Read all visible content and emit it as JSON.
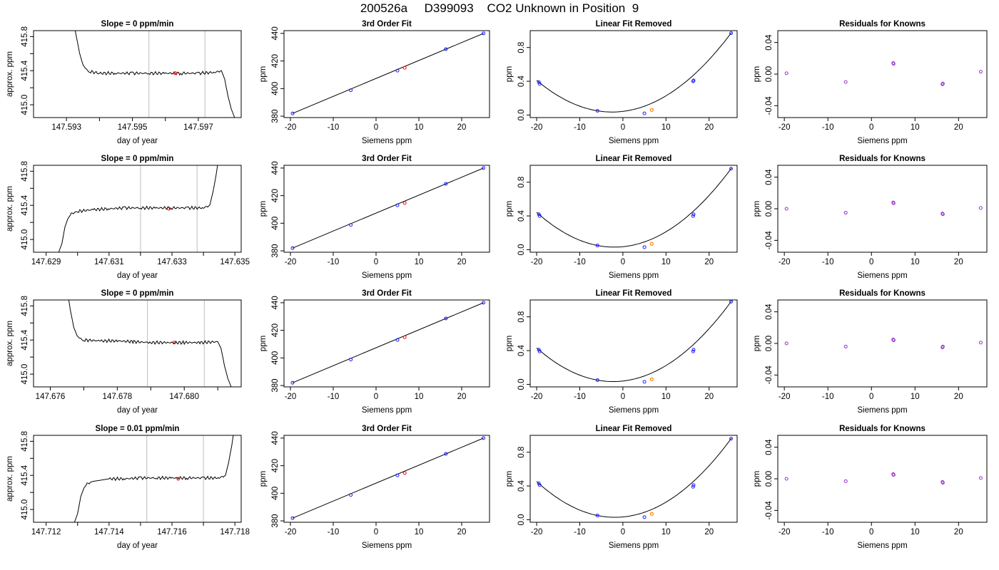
{
  "figure_title": "200526a     D399093    CO2 Unknown in Position  9",
  "colors": {
    "blue": "#1a1aff",
    "red": "#ff0000",
    "orange": "#ff8000",
    "purple": "#9932cc",
    "grid_line": "#c8c8c8",
    "curve": "#000000"
  },
  "chart_data": [
    {
      "type": "line",
      "panel": "time-row-1",
      "title": "Slope =  0  ppm/min",
      "xlabel": "day of year",
      "ylabel": "approx. ppm",
      "xlim": [
        147.592,
        147.5983
      ],
      "ylim": [
        414.85,
        415.87
      ],
      "xticks": [
        147.593,
        147.595,
        147.597
      ],
      "xtick_labels": [
        "147.593",
        "147.595",
        "147.597"
      ],
      "xticks_minor": [
        147.594,
        147.596
      ],
      "yticks": [
        415.0,
        415.2,
        415.4,
        415.6,
        415.8
      ],
      "ytick_labels": [
        "415.0",
        "",
        "415.4",
        "",
        "415.8"
      ],
      "vlines": [
        147.5955,
        147.5972
      ],
      "marker": {
        "x": 147.5963,
        "y": 415.37
      },
      "series": [
        {
          "x": [
            147.5932,
            147.5933,
            147.5934,
            147.5935,
            147.5936,
            147.5937,
            147.594,
            147.5945,
            147.595,
            147.5955,
            147.596,
            147.5965,
            147.597,
            147.5975,
            147.5977,
            147.5978,
            147.5979,
            147.598,
            147.5981
          ],
          "y": [
            416.0,
            415.8,
            415.6,
            415.47,
            415.41,
            415.39,
            415.37,
            415.37,
            415.37,
            415.37,
            415.37,
            415.37,
            415.37,
            415.38,
            415.4,
            415.3,
            415.1,
            414.95,
            414.85
          ]
        }
      ]
    },
    {
      "type": "scatter",
      "panel": "fit-row-1",
      "title": "3rd Order Fit",
      "xlabel": "Siemens ppm",
      "ylabel": "ppm",
      "xlim": [
        -21.5,
        26.5
      ],
      "ylim": [
        379,
        442
      ],
      "xticks": [
        -20,
        -10,
        0,
        10,
        20
      ],
      "yticks": [
        380,
        400,
        420,
        440
      ],
      "knowns": [
        {
          "x": -19.5,
          "y": 382
        },
        {
          "x": -5.9,
          "y": 398.8
        },
        {
          "x": 5.0,
          "y": 413.0
        },
        {
          "x": 16.3,
          "y": 428.6
        },
        {
          "x": 25.1,
          "y": 440.0
        }
      ],
      "unknown": {
        "x": 6.7,
        "y": 415.0
      }
    },
    {
      "type": "scatter",
      "panel": "lin-row-1",
      "title": "Linear Fit Removed",
      "xlabel": "Siemens ppm",
      "ylabel": "ppm",
      "xlim": [
        -21.5,
        26.5
      ],
      "ylim": [
        -0.03,
        1.0
      ],
      "xticks": [
        -20,
        -10,
        0,
        10,
        20
      ],
      "yticks": [
        0.0,
        0.4,
        0.8
      ],
      "knowns": [
        {
          "x": -19.5,
          "y": 0.39
        },
        {
          "x": -19.3,
          "y": 0.37
        },
        {
          "x": -5.9,
          "y": 0.05
        },
        {
          "x": 5.0,
          "y": 0.02
        },
        {
          "x": 16.3,
          "y": 0.4
        },
        {
          "x": 16.4,
          "y": 0.41
        },
        {
          "x": 25.1,
          "y": 0.97
        }
      ],
      "unknown": {
        "x": 6.7,
        "y": 0.06
      }
    },
    {
      "type": "scatter",
      "panel": "res-row-1",
      "title": "Residuals for Knowns",
      "xlabel": "Siemens ppm",
      "ylabel": "ppm",
      "xlim": [
        -21.5,
        26.5
      ],
      "ylim": [
        -0.055,
        0.055
      ],
      "xticks": [
        -20,
        -10,
        0,
        10,
        20
      ],
      "yticks": [
        -0.04,
        0.0,
        0.04
      ],
      "points": [
        {
          "x": -19.5,
          "y": 0.001
        },
        {
          "x": -5.9,
          "y": -0.01
        },
        {
          "x": 5.0,
          "y": 0.014
        },
        {
          "x": 5.1,
          "y": 0.013
        },
        {
          "x": 16.3,
          "y": -0.013
        },
        {
          "x": 16.4,
          "y": -0.012
        },
        {
          "x": 25.1,
          "y": 0.003
        }
      ]
    },
    {
      "type": "line",
      "panel": "time-row-2",
      "title": "Slope =  0  ppm/min",
      "xlabel": "day of year",
      "ylabel": "approx. ppm",
      "xlim": [
        147.6286,
        147.6352
      ],
      "ylim": [
        414.85,
        415.87
      ],
      "xticks": [
        147.629,
        147.631,
        147.633,
        147.635
      ],
      "xtick_labels": [
        "147.629",
        "147.631",
        "147.633",
        "147.635"
      ],
      "xticks_minor": [
        147.63,
        147.632,
        147.634
      ],
      "yticks": [
        415.0,
        415.2,
        415.4,
        415.6,
        415.8
      ],
      "ytick_labels": [
        "415.0",
        "",
        "415.4",
        "",
        "415.8"
      ],
      "vlines": [
        147.632,
        147.6338
      ],
      "marker": {
        "x": 147.6329,
        "y": 415.36
      },
      "series": [
        {
          "x": [
            147.6294,
            147.6295,
            147.6296,
            147.6297,
            147.6298,
            147.63,
            147.6305,
            147.631,
            147.6315,
            147.632,
            147.6325,
            147.633,
            147.6335,
            147.634,
            147.6342,
            147.6343,
            147.6344,
            147.6345
          ],
          "y": [
            414.85,
            414.95,
            415.15,
            415.25,
            415.3,
            415.33,
            415.35,
            415.36,
            415.37,
            415.37,
            415.37,
            415.37,
            415.37,
            415.37,
            415.4,
            415.55,
            415.75,
            416.0
          ]
        }
      ]
    },
    {
      "type": "scatter",
      "panel": "fit-row-2",
      "title": "3rd Order Fit",
      "xlabel": "Siemens ppm",
      "ylabel": "ppm",
      "xlim": [
        -21.5,
        26.5
      ],
      "ylim": [
        379,
        442
      ],
      "xticks": [
        -20,
        -10,
        0,
        10,
        20
      ],
      "yticks": [
        380,
        400,
        420,
        440
      ],
      "knowns": [
        {
          "x": -19.5,
          "y": 382
        },
        {
          "x": -5.9,
          "y": 398.8
        },
        {
          "x": 5.0,
          "y": 413.0
        },
        {
          "x": 16.3,
          "y": 428.6
        },
        {
          "x": 25.1,
          "y": 440.0
        }
      ],
      "unknown": {
        "x": 6.7,
        "y": 414.7
      }
    },
    {
      "type": "scatter",
      "panel": "lin-row-2",
      "title": "Linear Fit Removed",
      "xlabel": "Siemens ppm",
      "ylabel": "ppm",
      "xlim": [
        -21.5,
        26.5
      ],
      "ylim": [
        -0.03,
        1.0
      ],
      "xticks": [
        -20,
        -10,
        0,
        10,
        20
      ],
      "yticks": [
        0.0,
        0.4,
        0.8
      ],
      "knowns": [
        {
          "x": -19.5,
          "y": 0.42
        },
        {
          "x": -19.3,
          "y": 0.4
        },
        {
          "x": -5.9,
          "y": 0.05
        },
        {
          "x": 5.0,
          "y": 0.03
        },
        {
          "x": 16.3,
          "y": 0.4
        },
        {
          "x": 16.4,
          "y": 0.42
        },
        {
          "x": 25.1,
          "y": 0.96
        }
      ],
      "unknown": {
        "x": 6.7,
        "y": 0.07
      }
    },
    {
      "type": "scatter",
      "panel": "res-row-2",
      "title": "Residuals for Knowns",
      "xlabel": "Siemens ppm",
      "ylabel": "ppm",
      "xlim": [
        -21.5,
        26.5
      ],
      "ylim": [
        -0.055,
        0.055
      ],
      "xticks": [
        -20,
        -10,
        0,
        10,
        20
      ],
      "yticks": [
        -0.04,
        0.0,
        0.04
      ],
      "points": [
        {
          "x": -19.5,
          "y": 0.0
        },
        {
          "x": -5.9,
          "y": -0.005
        },
        {
          "x": 5.0,
          "y": 0.008
        },
        {
          "x": 5.1,
          "y": 0.007
        },
        {
          "x": 16.3,
          "y": -0.006
        },
        {
          "x": 16.4,
          "y": -0.007
        },
        {
          "x": 25.1,
          "y": 0.001
        }
      ]
    },
    {
      "type": "line",
      "panel": "time-row-3",
      "title": "Slope =  0  ppm/min",
      "xlabel": "day of year",
      "ylabel": "approx. ppm",
      "xlim": [
        147.6755,
        147.6817
      ],
      "ylim": [
        414.85,
        415.87
      ],
      "xticks": [
        147.676,
        147.678,
        147.68
      ],
      "xtick_labels": [
        "147.676",
        "147.678",
        "147.680"
      ],
      "xticks_minor": [
        147.677,
        147.679,
        147.681
      ],
      "yticks": [
        415.0,
        415.2,
        415.4,
        415.6,
        415.8
      ],
      "ytick_labels": [
        "415.0",
        "",
        "415.4",
        "",
        "415.8"
      ],
      "vlines": [
        147.6789,
        147.6806
      ],
      "marker": {
        "x": 147.6797,
        "y": 415.37
      },
      "series": [
        {
          "x": [
            147.6765,
            147.6766,
            147.6767,
            147.6768,
            147.6769,
            147.677,
            147.6775,
            147.678,
            147.6785,
            147.679,
            147.6795,
            147.68,
            147.6805,
            147.681,
            147.6811,
            147.6812,
            147.6813,
            147.6814
          ],
          "y": [
            416.0,
            415.75,
            415.55,
            415.45,
            415.41,
            415.4,
            415.39,
            415.39,
            415.38,
            415.37,
            415.37,
            415.37,
            415.37,
            415.38,
            415.3,
            415.1,
            414.95,
            414.85
          ]
        }
      ]
    },
    {
      "type": "scatter",
      "panel": "fit-row-3",
      "title": "3rd Order Fit",
      "xlabel": "Siemens ppm",
      "ylabel": "ppm",
      "xlim": [
        -21.5,
        26.5
      ],
      "ylim": [
        379,
        442
      ],
      "xticks": [
        -20,
        -10,
        0,
        10,
        20
      ],
      "yticks": [
        380,
        400,
        420,
        440
      ],
      "knowns": [
        {
          "x": -19.5,
          "y": 382
        },
        {
          "x": -5.9,
          "y": 398.8
        },
        {
          "x": 5.0,
          "y": 413.0
        },
        {
          "x": 16.3,
          "y": 428.6
        },
        {
          "x": 25.1,
          "y": 440.0
        }
      ],
      "unknown": {
        "x": 6.7,
        "y": 415.0
      }
    },
    {
      "type": "scatter",
      "panel": "lin-row-3",
      "title": "Linear Fit Removed",
      "xlabel": "Siemens ppm",
      "ylabel": "ppm",
      "xlim": [
        -21.5,
        26.5
      ],
      "ylim": [
        -0.03,
        1.0
      ],
      "xticks": [
        -20,
        -10,
        0,
        10,
        20
      ],
      "yticks": [
        0.0,
        0.4,
        0.8
      ],
      "knowns": [
        {
          "x": -19.5,
          "y": 0.41
        },
        {
          "x": -19.3,
          "y": 0.39
        },
        {
          "x": -5.9,
          "y": 0.05
        },
        {
          "x": 5.0,
          "y": 0.03
        },
        {
          "x": 16.3,
          "y": 0.39
        },
        {
          "x": 16.4,
          "y": 0.41
        },
        {
          "x": 25.1,
          "y": 0.98
        }
      ],
      "unknown": {
        "x": 6.7,
        "y": 0.06
      }
    },
    {
      "type": "scatter",
      "panel": "res-row-3",
      "title": "Residuals for Knowns",
      "xlabel": "Siemens ppm",
      "ylabel": "ppm",
      "xlim": [
        -21.5,
        26.5
      ],
      "ylim": [
        -0.055,
        0.055
      ],
      "xticks": [
        -20,
        -10,
        0,
        10,
        20
      ],
      "yticks": [
        -0.04,
        0.0,
        0.04
      ],
      "points": [
        {
          "x": -19.5,
          "y": 0.0
        },
        {
          "x": -5.9,
          "y": -0.004
        },
        {
          "x": 5.0,
          "y": 0.005
        },
        {
          "x": 5.1,
          "y": 0.004
        },
        {
          "x": 16.3,
          "y": -0.005
        },
        {
          "x": 16.4,
          "y": -0.004
        },
        {
          "x": 25.1,
          "y": 0.001
        }
      ]
    },
    {
      "type": "line",
      "panel": "time-row-4",
      "title": "Slope =  0.01  ppm/min",
      "xlabel": "day of year",
      "ylabel": "approx. ppm",
      "xlim": [
        147.7116,
        147.7182
      ],
      "ylim": [
        414.85,
        415.87
      ],
      "xticks": [
        147.712,
        147.714,
        147.716,
        147.718
      ],
      "xtick_labels": [
        "147.712",
        "147.714",
        "147.716",
        "147.718"
      ],
      "xticks_minor": [
        147.713,
        147.715,
        147.717
      ],
      "yticks": [
        415.0,
        415.2,
        415.4,
        415.6,
        415.8
      ],
      "ytick_labels": [
        "415.0",
        "",
        "415.4",
        "",
        "415.8"
      ],
      "vlines": [
        147.7152,
        147.717
      ],
      "marker": {
        "x": 147.7162,
        "y": 415.36
      },
      "series": [
        {
          "x": [
            147.7129,
            147.713,
            147.7131,
            147.7132,
            147.7133,
            147.7135,
            147.714,
            147.7145,
            147.715,
            147.7155,
            147.716,
            147.7165,
            147.717,
            147.7175,
            147.7177,
            147.7178,
            147.7179,
            147.718
          ],
          "y": [
            414.85,
            414.95,
            415.15,
            415.25,
            415.3,
            415.33,
            415.36,
            415.36,
            415.37,
            415.37,
            415.37,
            415.37,
            415.37,
            415.37,
            415.4,
            415.55,
            415.75,
            416.0
          ]
        }
      ]
    },
    {
      "type": "scatter",
      "panel": "fit-row-4",
      "title": "3rd Order Fit",
      "xlabel": "Siemens ppm",
      "ylabel": "ppm",
      "xlim": [
        -21.5,
        26.5
      ],
      "ylim": [
        379,
        442
      ],
      "xticks": [
        -20,
        -10,
        0,
        10,
        20
      ],
      "yticks": [
        380,
        400,
        420,
        440
      ],
      "knowns": [
        {
          "x": -19.5,
          "y": 382
        },
        {
          "x": -5.9,
          "y": 398.8
        },
        {
          "x": 5.0,
          "y": 413.0
        },
        {
          "x": 16.3,
          "y": 428.6
        },
        {
          "x": 25.1,
          "y": 440.0
        }
      ],
      "unknown": {
        "x": 6.7,
        "y": 414.7
      }
    },
    {
      "type": "scatter",
      "panel": "lin-row-4",
      "title": "Linear Fit Removed",
      "xlabel": "Siemens ppm",
      "ylabel": "ppm",
      "xlim": [
        -21.5,
        26.5
      ],
      "ylim": [
        -0.03,
        1.0
      ],
      "xticks": [
        -20,
        -10,
        0,
        10,
        20
      ],
      "yticks": [
        0.0,
        0.4,
        0.8
      ],
      "knowns": [
        {
          "x": -19.5,
          "y": 0.43
        },
        {
          "x": -19.3,
          "y": 0.41
        },
        {
          "x": -5.9,
          "y": 0.05
        },
        {
          "x": 5.0,
          "y": 0.03
        },
        {
          "x": 16.3,
          "y": 0.39
        },
        {
          "x": 16.4,
          "y": 0.41
        },
        {
          "x": 25.1,
          "y": 0.96
        }
      ],
      "unknown": {
        "x": 6.7,
        "y": 0.07
      }
    },
    {
      "type": "scatter",
      "panel": "res-row-4",
      "title": "Residuals for Knowns",
      "xlabel": "Siemens ppm",
      "ylabel": "ppm",
      "xlim": [
        -21.5,
        26.5
      ],
      "ylim": [
        -0.055,
        0.055
      ],
      "xticks": [
        -20,
        -10,
        0,
        10,
        20
      ],
      "yticks": [
        -0.04,
        0.0,
        0.04
      ],
      "points": [
        {
          "x": -19.5,
          "y": 0.0
        },
        {
          "x": -5.9,
          "y": -0.003
        },
        {
          "x": 5.0,
          "y": 0.006
        },
        {
          "x": 5.1,
          "y": 0.005
        },
        {
          "x": 16.3,
          "y": -0.004
        },
        {
          "x": 16.4,
          "y": -0.005
        },
        {
          "x": 25.1,
          "y": 0.001
        }
      ]
    }
  ]
}
